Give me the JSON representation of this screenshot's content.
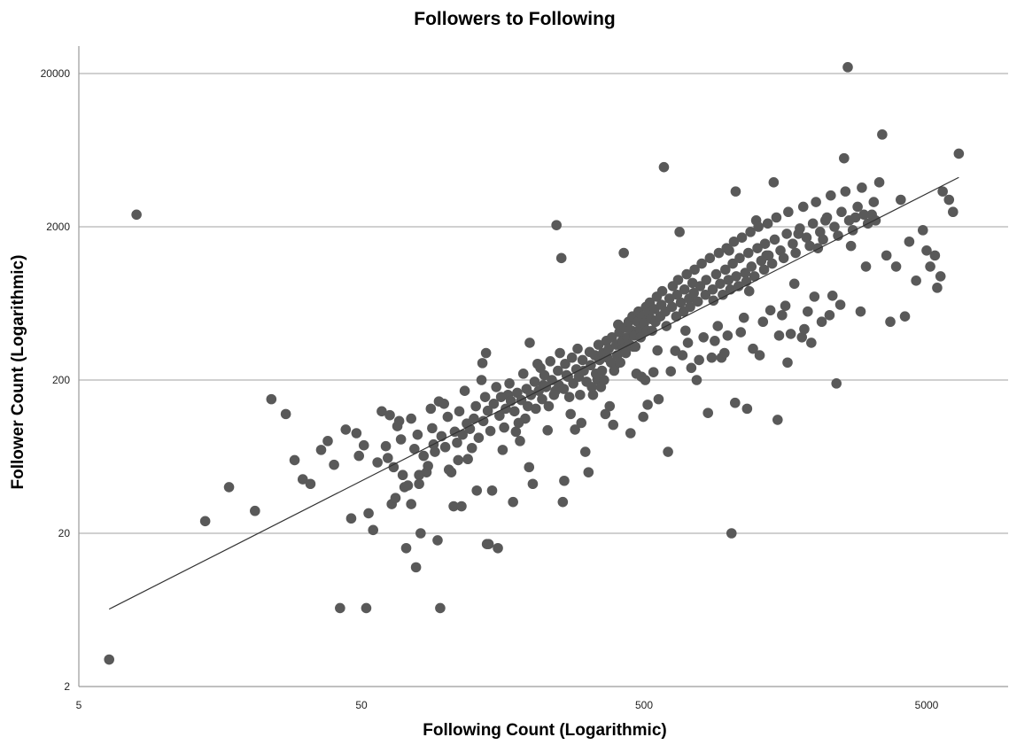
{
  "chart_data": {
    "type": "scatter",
    "title": "Followers to Following",
    "xlabel": "Following Count (Logarithmic)",
    "ylabel": "Follower Count (Logarithmic)",
    "x_scale": "log",
    "y_scale": "log",
    "xlim": [
      5,
      7000
    ],
    "ylim": [
      2,
      30000
    ],
    "x_ticks": [
      5,
      50,
      500,
      5000
    ],
    "y_ticks": [
      2,
      20,
      200,
      2000,
      20000
    ],
    "grid": "horizontal",
    "legend": "none",
    "point_color": "#595959",
    "trendline": {
      "type": "linear-log",
      "x": [
        6.4,
        6500
      ],
      "y": [
        6.4,
        4200
      ]
    },
    "points": [
      [
        6.4,
        3
      ],
      [
        8,
        2400
      ],
      [
        14,
        24
      ],
      [
        17,
        40
      ],
      [
        21,
        28
      ],
      [
        42,
        6.5
      ],
      [
        46,
        25
      ],
      [
        52,
        6.5
      ],
      [
        53,
        27
      ],
      [
        55,
        21
      ],
      [
        57,
        58
      ],
      [
        64,
        31
      ],
      [
        66,
        34
      ],
      [
        68,
        108
      ],
      [
        70,
        48
      ],
      [
        71,
        40
      ],
      [
        72,
        16
      ],
      [
        73,
        41
      ],
      [
        75,
        31
      ],
      [
        75,
        112
      ],
      [
        78,
        12
      ],
      [
        80,
        48
      ],
      [
        80,
        42
      ],
      [
        81,
        20
      ],
      [
        85,
        50
      ],
      [
        90,
        76
      ],
      [
        93,
        18
      ],
      [
        94,
        145
      ],
      [
        95,
        6.5
      ],
      [
        102,
        52
      ],
      [
        104,
        50
      ],
      [
        106,
        30
      ],
      [
        110,
        60
      ],
      [
        113,
        30
      ],
      [
        119,
        61
      ],
      [
        128,
        38
      ],
      [
        133,
        200
      ],
      [
        134,
        258
      ],
      [
        138,
        300
      ],
      [
        139,
        17
      ],
      [
        141,
        17
      ],
      [
        145,
        38
      ],
      [
        152,
        16
      ],
      [
        158,
        70
      ],
      [
        165,
        160
      ],
      [
        172,
        32
      ],
      [
        176,
        92
      ],
      [
        182,
        80
      ],
      [
        190,
        112
      ],
      [
        196,
        54
      ],
      [
        197,
        350
      ],
      [
        202,
        42
      ],
      [
        210,
        255
      ],
      [
        220,
        185
      ],
      [
        228,
        94
      ],
      [
        243,
        170
      ],
      [
        245,
        2050
      ],
      [
        255,
        1250
      ],
      [
        258,
        32
      ],
      [
        261,
        44
      ],
      [
        269,
        210
      ],
      [
        275,
        120
      ],
      [
        285,
        95
      ],
      [
        300,
        105
      ],
      [
        310,
        68
      ],
      [
        318,
        50
      ],
      [
        330,
        160
      ],
      [
        342,
        202
      ],
      [
        352,
        180
      ],
      [
        365,
        120
      ],
      [
        378,
        135
      ],
      [
        389,
        102
      ],
      [
        395,
        250
      ],
      [
        405,
        460
      ],
      [
        416,
        355
      ],
      [
        424,
        1350
      ],
      [
        448,
        90
      ],
      [
        458,
        330
      ],
      [
        470,
        220
      ],
      [
        490,
        210
      ],
      [
        497,
        115
      ],
      [
        505,
        200
      ],
      [
        515,
        138
      ],
      [
        540,
        225
      ],
      [
        558,
        312
      ],
      [
        563,
        150
      ],
      [
        588,
        4900
      ],
      [
        608,
        68
      ],
      [
        622,
        228
      ],
      [
        645,
        310
      ],
      [
        668,
        1850
      ],
      [
        684,
        290
      ],
      [
        701,
        420
      ],
      [
        715,
        350
      ],
      [
        735,
        240
      ],
      [
        768,
        200
      ],
      [
        783,
        270
      ],
      [
        812,
        380
      ],
      [
        842,
        122
      ],
      [
        868,
        280
      ],
      [
        890,
        360
      ],
      [
        912,
        450
      ],
      [
        940,
        280
      ],
      [
        963,
        300
      ],
      [
        988,
        390
      ],
      [
        1000,
        1400
      ],
      [
        1020,
        20
      ],
      [
        1050,
        142
      ],
      [
        1055,
        3400
      ],
      [
        1100,
        410
      ],
      [
        1128,
        510
      ],
      [
        1158,
        130
      ],
      [
        1178,
        760
      ],
      [
        1215,
        320
      ],
      [
        1247,
        2200
      ],
      [
        1283,
        290
      ],
      [
        1318,
        480
      ],
      [
        1356,
        1300
      ],
      [
        1400,
        570
      ],
      [
        1438,
        3900
      ],
      [
        1485,
        110
      ],
      [
        1503,
        390
      ],
      [
        1540,
        530
      ],
      [
        1582,
        610
      ],
      [
        1610,
        260
      ],
      [
        1653,
        400
      ],
      [
        1702,
        850
      ],
      [
        1759,
        1800
      ],
      [
        1810,
        380
      ],
      [
        1846,
        430
      ],
      [
        1898,
        560
      ],
      [
        1954,
        350
      ],
      [
        2004,
        700
      ],
      [
        2062,
        1450
      ],
      [
        2127,
        480
      ],
      [
        2192,
        2200
      ],
      [
        2267,
        530
      ],
      [
        2322,
        710
      ],
      [
        2398,
        190
      ],
      [
        2475,
        620
      ],
      [
        2552,
        5600
      ],
      [
        2630,
        22000
      ],
      [
        2700,
        1500
      ],
      [
        2800,
        2300
      ],
      [
        2920,
        560
      ],
      [
        3050,
        1100
      ],
      [
        3200,
        2400
      ],
      [
        3300,
        2200
      ],
      [
        3482,
        8000
      ],
      [
        3605,
        1300
      ],
      [
        3720,
        480
      ],
      [
        3900,
        1100
      ],
      [
        4050,
        3000
      ],
      [
        4190,
        520
      ],
      [
        4340,
        1600
      ],
      [
        4590,
        890
      ],
      [
        4850,
        1900
      ],
      [
        5000,
        1400
      ],
      [
        5150,
        1100
      ],
      [
        5350,
        1300
      ],
      [
        5450,
        800
      ],
      [
        5600,
        950
      ],
      [
        5700,
        3400
      ],
      [
        6000,
        3000
      ],
      [
        6200,
        2500
      ],
      [
        6500,
        6000
      ],
      [
        24,
        150
      ],
      [
        27,
        120
      ],
      [
        29,
        60
      ],
      [
        31,
        45
      ],
      [
        33,
        42
      ],
      [
        36,
        70
      ],
      [
        38,
        80
      ],
      [
        40,
        56
      ],
      [
        44,
        95
      ],
      [
        48,
        90
      ],
      [
        49,
        64
      ],
      [
        51,
        75
      ],
      [
        59,
        125
      ],
      [
        61,
        74
      ],
      [
        62,
        62
      ],
      [
        63,
        118
      ],
      [
        65,
        54
      ],
      [
        67,
        100
      ],
      [
        69,
        82
      ],
      [
        77,
        71
      ],
      [
        79,
        88
      ],
      [
        83,
        64
      ],
      [
        86,
        55
      ],
      [
        88,
        130
      ],
      [
        89,
        97
      ],
      [
        91,
        68
      ],
      [
        96,
        86
      ],
      [
        98,
        140
      ],
      [
        99,
        73
      ],
      [
        101,
        115
      ],
      [
        107,
        92
      ],
      [
        109,
        78
      ],
      [
        111,
        125
      ],
      [
        114,
        88
      ],
      [
        116,
        170
      ],
      [
        118,
        104
      ],
      [
        121,
        96
      ],
      [
        123,
        72
      ],
      [
        125,
        112
      ],
      [
        127,
        135
      ],
      [
        130,
        84
      ],
      [
        135,
        108
      ],
      [
        137,
        155
      ],
      [
        140,
        126
      ],
      [
        143,
        93
      ],
      [
        147,
        140
      ],
      [
        150,
        180
      ],
      [
        154,
        117
      ],
      [
        156,
        155
      ],
      [
        160,
        98
      ],
      [
        162,
        130
      ],
      [
        167,
        190
      ],
      [
        169,
        146
      ],
      [
        174,
        125
      ],
      [
        178,
        165
      ],
      [
        180,
        105
      ],
      [
        184,
        148
      ],
      [
        187,
        220
      ],
      [
        192,
        175
      ],
      [
        194,
        135
      ],
      [
        199,
        160
      ],
      [
        205,
        195
      ],
      [
        207,
        130
      ],
      [
        212,
        170
      ],
      [
        215,
        240
      ],
      [
        218,
        150
      ],
      [
        222,
        215
      ],
      [
        225,
        180
      ],
      [
        230,
        135
      ],
      [
        233,
        265
      ],
      [
        236,
        200
      ],
      [
        240,
        160
      ],
      [
        248,
        230
      ],
      [
        250,
        185
      ],
      [
        252,
        300
      ],
      [
        260,
        175
      ],
      [
        263,
        255
      ],
      [
        266,
        215
      ],
      [
        272,
        155
      ],
      [
        278,
        280
      ],
      [
        281,
        190
      ],
      [
        288,
        235
      ],
      [
        291,
        320
      ],
      [
        294,
        210
      ],
      [
        297,
        160
      ],
      [
        303,
        270
      ],
      [
        306,
        230
      ],
      [
        313,
        195
      ],
      [
        321,
        305
      ],
      [
        324,
        250
      ],
      [
        327,
        180
      ],
      [
        335,
        290
      ],
      [
        338,
        220
      ],
      [
        345,
        340
      ],
      [
        348,
        270
      ],
      [
        355,
        230
      ],
      [
        358,
        300
      ],
      [
        361,
        200
      ],
      [
        368,
        360
      ],
      [
        371,
        280
      ],
      [
        375,
        320
      ],
      [
        382,
        260
      ],
      [
        385,
        380
      ],
      [
        392,
        230
      ],
      [
        399,
        340
      ],
      [
        402,
        290
      ],
      [
        409,
        410
      ],
      [
        412,
        260
      ],
      [
        419,
        360
      ],
      [
        421,
        320
      ],
      [
        427,
        440
      ],
      [
        431,
        300
      ],
      [
        437,
        380
      ],
      [
        441,
        480
      ],
      [
        445,
        340
      ],
      [
        452,
        420
      ],
      [
        455,
        520
      ],
      [
        462,
        390
      ],
      [
        466,
        330
      ],
      [
        474,
        480
      ],
      [
        478,
        560
      ],
      [
        484,
        430
      ],
      [
        487,
        380
      ],
      [
        494,
        520
      ],
      [
        500,
        470
      ],
      [
        508,
        600
      ],
      [
        512,
        420
      ],
      [
        520,
        550
      ],
      [
        524,
        640
      ],
      [
        530,
        500
      ],
      [
        534,
        420
      ],
      [
        545,
        580
      ],
      [
        549,
        480
      ],
      [
        555,
        700
      ],
      [
        571,
        520
      ],
      [
        576,
        620
      ],
      [
        580,
        760
      ],
      [
        595,
        560
      ],
      [
        600,
        450
      ],
      [
        615,
        680
      ],
      [
        628,
        600
      ],
      [
        632,
        820
      ],
      [
        650,
        520
      ],
      [
        655,
        720
      ],
      [
        660,
        900
      ],
      [
        675,
        640
      ],
      [
        690,
        560
      ],
      [
        695,
        780
      ],
      [
        708,
        980
      ],
      [
        722,
        680
      ],
      [
        728,
        600
      ],
      [
        742,
        860
      ],
      [
        750,
        740
      ],
      [
        755,
        1050
      ],
      [
        775,
        650
      ],
      [
        790,
        820
      ],
      [
        800,
        1150
      ],
      [
        825,
        720
      ],
      [
        830,
        900
      ],
      [
        855,
        1250
      ],
      [
        875,
        780
      ],
      [
        880,
        660
      ],
      [
        900,
        980
      ],
      [
        920,
        1350
      ],
      [
        930,
        850
      ],
      [
        950,
        720
      ],
      [
        970,
        1050
      ],
      [
        980,
        1450
      ],
      [
        995,
        900
      ],
      [
        1010,
        780
      ],
      [
        1030,
        1150
      ],
      [
        1040,
        1600
      ],
      [
        1060,
        950
      ],
      [
        1080,
        820
      ],
      [
        1090,
        1250
      ],
      [
        1110,
        1700
      ],
      [
        1140,
        1000
      ],
      [
        1150,
        880
      ],
      [
        1170,
        1350
      ],
      [
        1190,
        1850
      ],
      [
        1200,
        1100
      ],
      [
        1230,
        950
      ],
      [
        1260,
        1450
      ],
      [
        1270,
        2000
      ],
      [
        1300,
        1200
      ],
      [
        1330,
        1050
      ],
      [
        1340,
        1550
      ],
      [
        1370,
        2100
      ],
      [
        1380,
        1300
      ],
      [
        1420,
        1150
      ],
      [
        1450,
        1650
      ],
      [
        1470,
        2300
      ],
      [
        1520,
        1400
      ],
      [
        1560,
        1250
      ],
      [
        1600,
        1800
      ],
      [
        1620,
        2500
      ],
      [
        1680,
        1550
      ],
      [
        1720,
        1350
      ],
      [
        1780,
        1950
      ],
      [
        1830,
        2700
      ],
      [
        1880,
        1700
      ],
      [
        1930,
        1500
      ],
      [
        1980,
        2100
      ],
      [
        2030,
        2900
      ],
      [
        2100,
        1850
      ],
      [
        2150,
        1650
      ],
      [
        2220,
        2300
      ],
      [
        2290,
        3200
      ],
      [
        2360,
        2000
      ],
      [
        2430,
        1750
      ],
      [
        2500,
        2500
      ],
      [
        2580,
        3400
      ],
      [
        2660,
        2200
      ],
      [
        2740,
        1900
      ],
      [
        2850,
        2700
      ],
      [
        2950,
        3600
      ],
      [
        3000,
        2400
      ],
      [
        3100,
        2100
      ],
      [
        3250,
        2900
      ],
      [
        3400,
        3900
      ]
    ]
  }
}
